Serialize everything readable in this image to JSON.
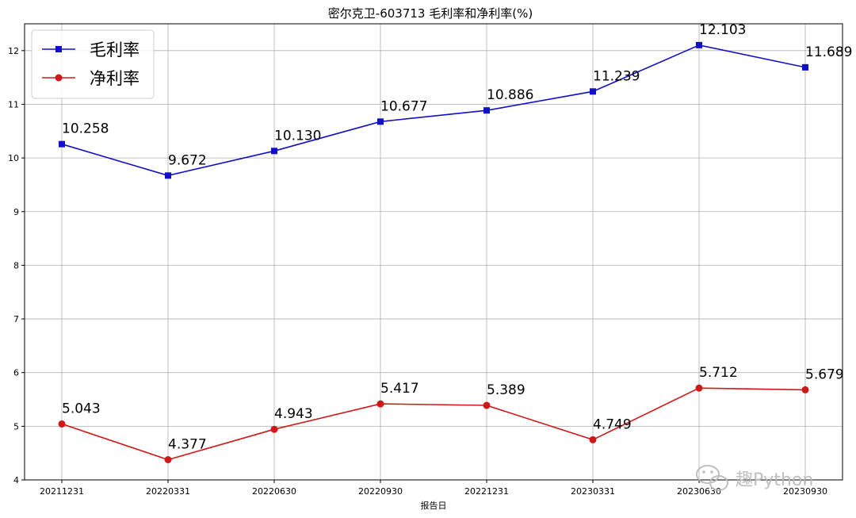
{
  "chart_data": {
    "type": "line",
    "title": "密尔克卫-603713 毛利率和净利率(%)",
    "xlabel": "报告日",
    "ylabel": "",
    "categories": [
      "20211231",
      "20220331",
      "20220630",
      "20220930",
      "20221231",
      "20230331",
      "20230630",
      "20230930"
    ],
    "ylim": [
      4,
      12.5
    ],
    "yticks": [
      4,
      5,
      6,
      7,
      8,
      9,
      10,
      11,
      12
    ],
    "grid": true,
    "legend_position": "top-left",
    "series": [
      {
        "name": "毛利率",
        "color": "#1010c8",
        "marker": "square",
        "values": [
          10.258,
          9.672,
          10.13,
          10.677,
          10.886,
          11.239,
          12.103,
          11.689
        ],
        "labels": [
          "10.258",
          "9.672",
          "10.130",
          "10.677",
          "10.886",
          "11.239",
          "12.103",
          "11.689"
        ]
      },
      {
        "name": "净利率",
        "color": "#d01818",
        "marker": "circle",
        "values": [
          5.043,
          4.377,
          4.943,
          5.417,
          5.389,
          4.749,
          5.712,
          5.679
        ],
        "labels": [
          "5.043",
          "4.377",
          "4.943",
          "5.417",
          "5.389",
          "4.749",
          "5.712",
          "5.679"
        ]
      }
    ]
  },
  "watermark": {
    "text": "趣Python",
    "icon": "wechat-icon"
  }
}
